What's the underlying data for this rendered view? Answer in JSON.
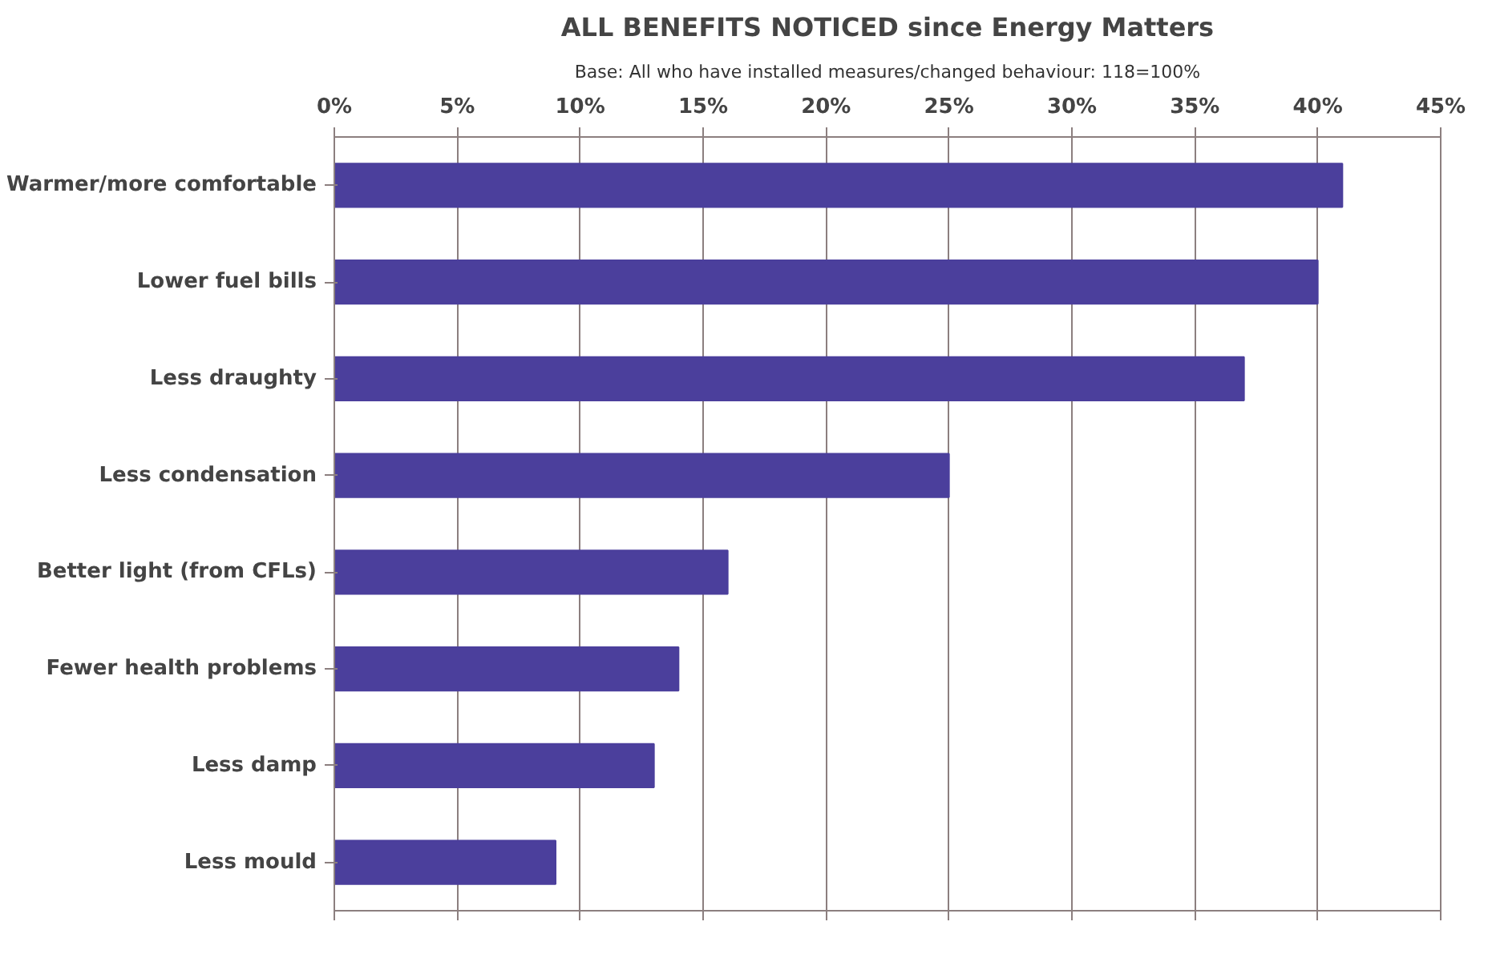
{
  "chart_data": {
    "type": "bar",
    "orientation": "horizontal",
    "title": "ALL BENEFITS NOTICED since Energy Matters",
    "subtitle": "Base: All who have installed measures/changed behaviour: 118=100%",
    "categories": [
      "Warmer/more comfortable",
      "Lower fuel bills",
      "Less draughty",
      "Less condensation",
      "Better light (from CFLs)",
      "Fewer health problems",
      "Less damp",
      "Less mould"
    ],
    "values": [
      41,
      40,
      37,
      25,
      16,
      14,
      13,
      9
    ],
    "color": "#4b3f9c",
    "xlim": [
      0,
      45
    ],
    "xticks": [
      {
        "value": 0,
        "label": "0%"
      },
      {
        "value": 5,
        "label": "5%"
      },
      {
        "value": 10,
        "label": "10%"
      },
      {
        "value": 15,
        "label": "15%"
      },
      {
        "value": 20,
        "label": "20%"
      },
      {
        "value": 25,
        "label": "25%"
      },
      {
        "value": 30,
        "label": "30%"
      },
      {
        "value": 35,
        "label": "35%"
      },
      {
        "value": 40,
        "label": "40%"
      },
      {
        "value": 45,
        "label": "45%"
      }
    ],
    "grid": "x"
  }
}
